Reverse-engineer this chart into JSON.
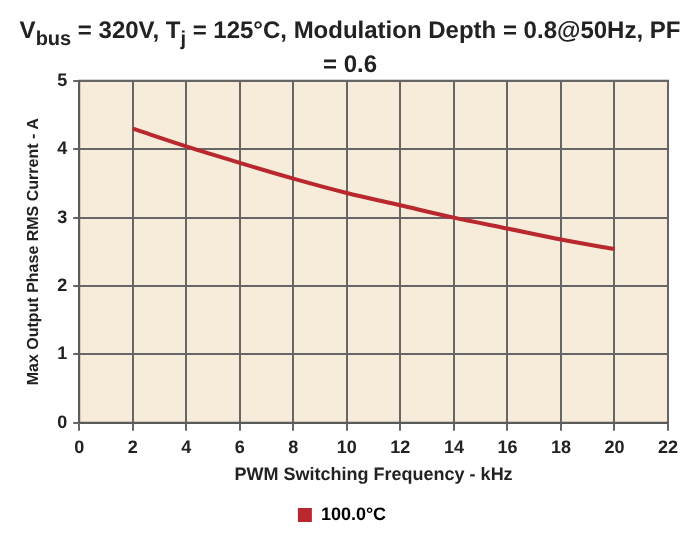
{
  "chart_data": {
    "type": "line",
    "title": "V$_{bus}$ = 320V, T$_{j}$ = 125°C, Modulation Depth = 0.8@50Hz, PF = 0.6",
    "xlabel": "PWM Switching Frequency - kHz",
    "ylabel": "Max Output Phase RMS Current - A",
    "x": [
      2,
      4,
      6,
      8,
      10,
      12,
      14,
      16,
      18,
      20
    ],
    "series": [
      {
        "name": "100.0°C",
        "color": "#b8282e",
        "values": [
          4.3,
          4.04,
          3.8,
          3.57,
          3.36,
          3.18,
          3.0,
          2.84,
          2.68,
          2.54
        ]
      }
    ],
    "xlim": [
      0,
      22
    ],
    "xticks": [
      0,
      2,
      4,
      6,
      8,
      10,
      12,
      14,
      16,
      18,
      20,
      22
    ],
    "ylim": [
      0,
      5
    ],
    "yticks": [
      0,
      1,
      2,
      3,
      4,
      5
    ],
    "grid": true,
    "legend": "bottom",
    "marker": "none",
    "line_style": "solid"
  }
}
